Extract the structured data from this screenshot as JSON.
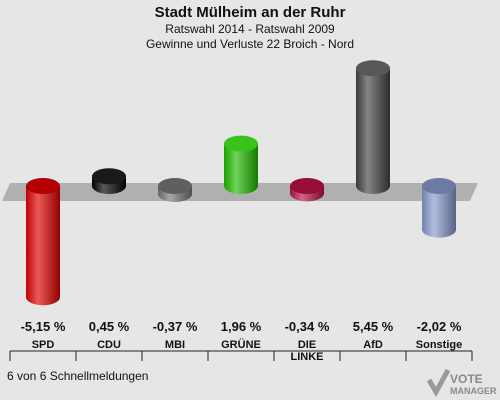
{
  "header": {
    "title": "Stadt Mülheim an der Ruhr",
    "subtitle1": "Ratswahl 2014 - Ratswahl 2009",
    "subtitle2": "Gewinne und Verluste 22 Broich - Nord"
  },
  "footer": {
    "text": "6 von 6 Schnellmeldungen"
  },
  "logo": {
    "line1": "VOTE",
    "line2": "MANAGER"
  },
  "chart_data": {
    "type": "bar",
    "title": "Stadt Mülheim an der Ruhr",
    "subtitle": "Ratswahl 2014 - Ratswahl 2009 / Gewinne und Verluste 22 Broich - Nord",
    "categories": [
      "SPD",
      "CDU",
      "MBI",
      "GRÜNE",
      "DIE LINKE",
      "AfD",
      "Sonstige"
    ],
    "category_lines": [
      [
        "SPD"
      ],
      [
        "CDU"
      ],
      [
        "MBI"
      ],
      [
        "GRÜNE"
      ],
      [
        "DIE",
        "LINKE"
      ],
      [
        "AfD"
      ],
      [
        "Sonstige"
      ]
    ],
    "values": [
      -5.15,
      0.45,
      -0.37,
      1.96,
      -0.34,
      5.45,
      -2.02
    ],
    "value_labels": [
      "-5,15 %",
      "0,45 %",
      "-0,37 %",
      "1,96 %",
      "-0,34 %",
      "5,45 %",
      "-2,02 %"
    ],
    "colors": [
      "#e00000",
      "#000000",
      "#777777",
      "#22bb00",
      "#bb1144",
      "#444444",
      "#8899cc"
    ],
    "grid": false,
    "legend": "none"
  }
}
